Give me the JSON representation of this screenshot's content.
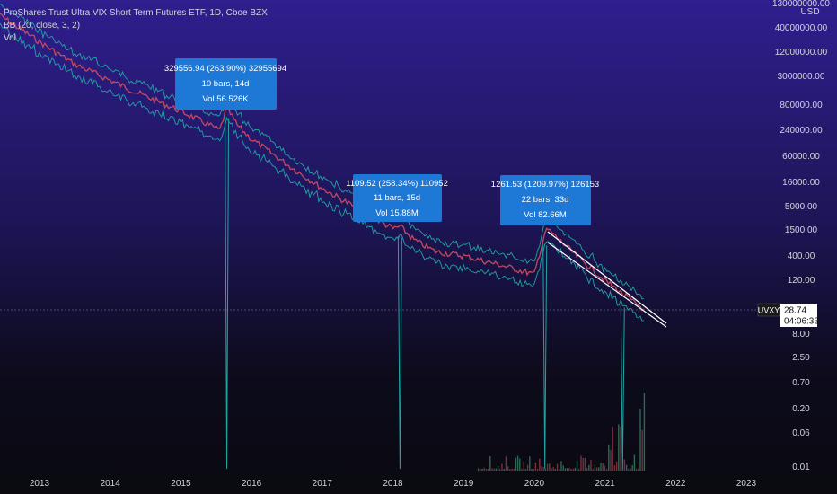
{
  "header": {
    "title": "ProShares Trust Ultra VIX Short Term Futures ETF, 1D, Cboe BZX",
    "indicator": "BB (20, close, 3, 2)",
    "volume_label": "Vol",
    "currency": "USD"
  },
  "price_tag": {
    "symbol": "UVXY",
    "price": "28.74",
    "countdown": "04:06:33"
  },
  "measurements": [
    {
      "line1": "329556.94 (263.90%) 32955694",
      "line2": "10 bars, 14d",
      "line3": "Vol 56.526K"
    },
    {
      "line1": "1109.52 (258.34%) 110952",
      "line2": "11 bars, 15d",
      "line3": "Vol 15.88M"
    },
    {
      "line1": "1261.53 (1209.97%) 126153",
      "line2": "22 bars, 33d",
      "line3": "Vol 82.66M"
    }
  ],
  "colors": {
    "bg_top": "#2f1e8e",
    "bg_bottom": "#0a0a12",
    "price_line": "#c24a5e",
    "band": "#22a3a3",
    "measure_box": "#1e78d6",
    "volume": "#3d8f6e"
  },
  "chart_data": {
    "type": "line",
    "title": "ProShares Trust Ultra VIX Short Term Futures ETF, 1D, Cboe BZX",
    "y_scale": "log",
    "y_ticks": [
      "130000000.00",
      "40000000.00",
      "12000000.00",
      "3000000.00",
      "800000.00",
      "240000.00",
      "60000.00",
      "16000.00",
      "5000.00",
      "1500.00",
      "400.00",
      "120.00",
      "8.00",
      "2.50",
      "0.70",
      "0.20",
      "0.06",
      "0.01"
    ],
    "x_ticks": [
      "2013",
      "2014",
      "2015",
      "2016",
      "2017",
      "2018",
      "2019",
      "2020",
      "2021",
      "2022",
      "2023"
    ],
    "series": [
      {
        "values_x": [
          2012.4,
          2013.0,
          2013.5,
          2014.0,
          2014.5,
          2015.0,
          2015.55,
          2015.65,
          2015.8,
          2016.0,
          2016.5,
          2017.0,
          2017.5,
          2018.0,
          2018.1,
          2018.3,
          2018.6,
          2019.0,
          2019.5,
          2020.0,
          2020.15,
          2020.2,
          2020.6,
          2021.0,
          2021.4,
          2021.55
        ],
        "values_y": [
          80000000,
          20000000,
          6000000,
          2500000,
          1200000,
          600000,
          240000,
          700000,
          300000,
          150000,
          40000,
          12000,
          4500,
          1600,
          1800,
          900,
          500,
          400,
          260,
          160,
          1300,
          1500,
          400,
          120,
          40,
          28.74
        ]
      }
    ],
    "last_price": 28.74
  }
}
